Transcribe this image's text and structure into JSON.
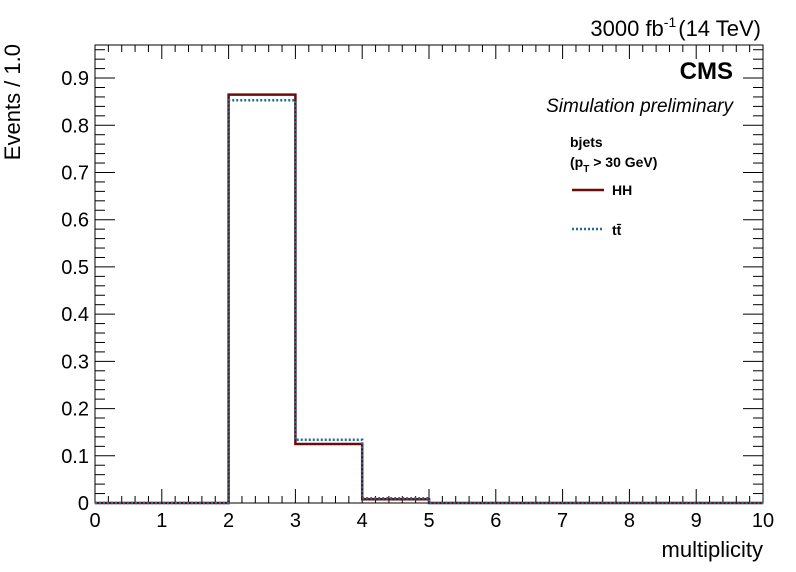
{
  "chart_data": {
    "type": "histogram",
    "xlabel": "multiplicity",
    "ylabel": "Events / 1.0",
    "xlim": [
      0,
      10
    ],
    "ylim": [
      0,
      0.97
    ],
    "bin_edges": [
      0,
      1,
      2,
      3,
      4,
      5,
      6,
      7,
      8,
      9,
      10
    ],
    "x_ticks": [
      "0",
      "1",
      "2",
      "3",
      "4",
      "5",
      "6",
      "7",
      "8",
      "9",
      "10"
    ],
    "y_ticks": [
      {
        "value": 0,
        "label": "0"
      },
      {
        "value": 0.1,
        "label": "0.1"
      },
      {
        "value": 0.2,
        "label": "0.2"
      },
      {
        "value": 0.3,
        "label": "0.3"
      },
      {
        "value": 0.4,
        "label": "0.4"
      },
      {
        "value": 0.5,
        "label": "0.5"
      },
      {
        "value": 0.6,
        "label": "0.6"
      },
      {
        "value": 0.7,
        "label": "0.7"
      },
      {
        "value": 0.8,
        "label": "0.8"
      },
      {
        "value": 0.9,
        "label": "0.9"
      }
    ],
    "series": [
      {
        "name": "HH",
        "color": "#6b0b0b",
        "style": "solid",
        "values": [
          0,
          0,
          0.865,
          0.125,
          0.008,
          0,
          0,
          0,
          0,
          0
        ]
      },
      {
        "name": "tt̄",
        "color": "#1f6f95",
        "style": "dotted",
        "values": [
          0,
          0,
          0.853,
          0.134,
          0.01,
          0,
          0,
          0,
          0,
          0
        ]
      }
    ],
    "legend": {
      "placement": "top-right",
      "header_line1": "bjets",
      "header_line2_prefix": "(p",
      "header_line2_sub": "T",
      "header_line2_suffix": " > 30 GeV)"
    },
    "annotations": {
      "lumi_prefix": "3000 fb",
      "lumi_sup": "-1",
      "lumi_suffix": "(14 TeV)",
      "experiment": "CMS",
      "status": "Simulation preliminary"
    },
    "grid": false
  }
}
